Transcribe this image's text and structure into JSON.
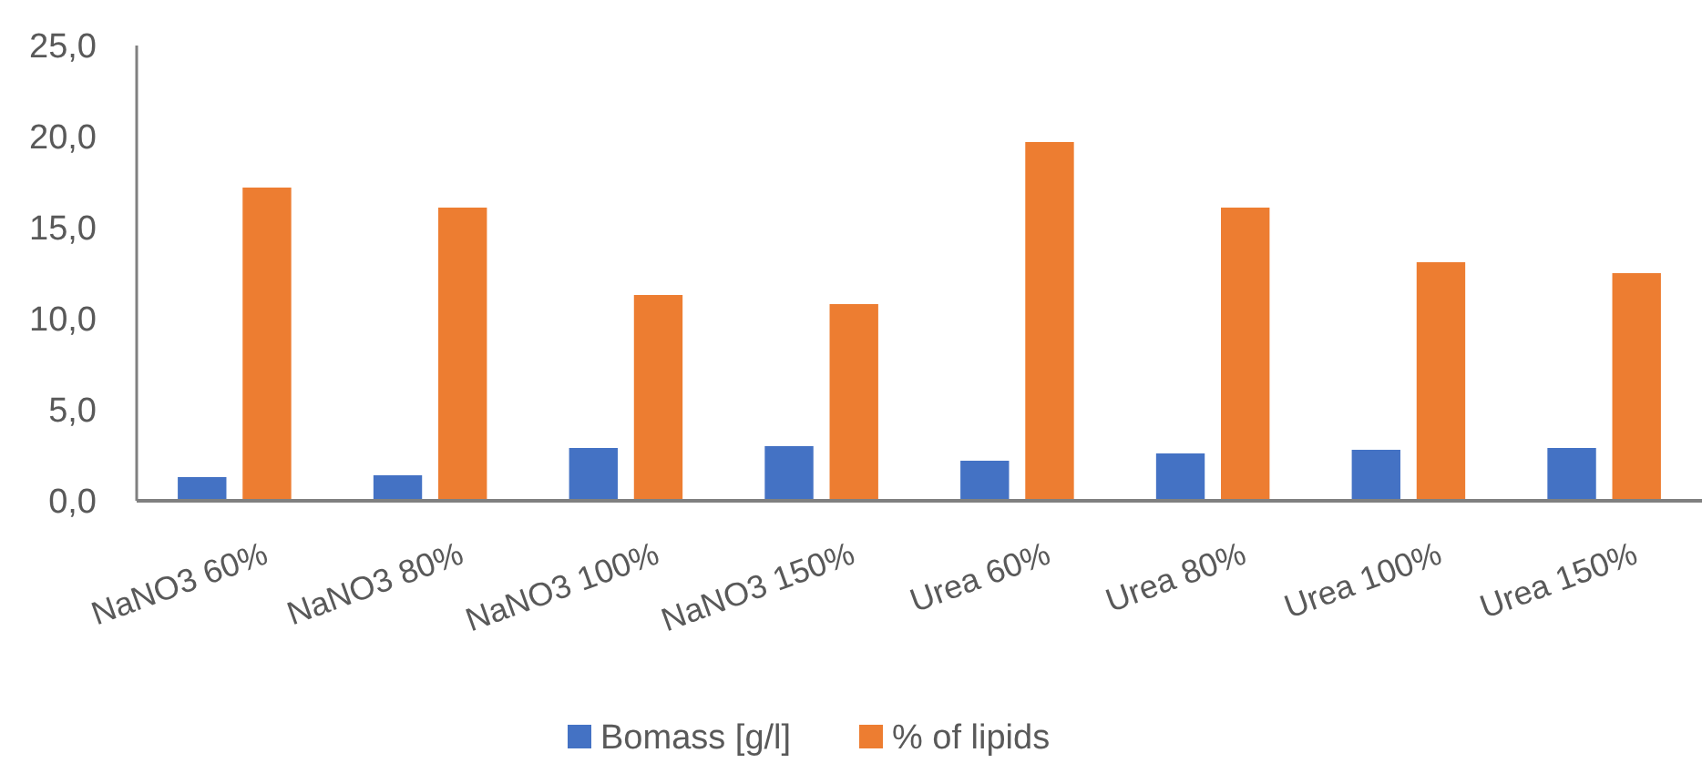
{
  "chart_data": {
    "type": "bar",
    "categories": [
      "NaNO3 60%",
      "NaNO3 80%",
      "NaNO3 100%",
      "NaNO3 150%",
      "Urea 60%",
      "Urea 80%",
      "Urea 100%",
      "Urea 150%"
    ],
    "series": [
      {
        "name": "Bomass [g/l]",
        "color": "#4472c4",
        "values": [
          1.3,
          1.4,
          2.9,
          3.0,
          2.2,
          2.6,
          2.8,
          2.9
        ]
      },
      {
        "name": "% of lipids",
        "color": "#ed7d31",
        "values": [
          17.2,
          16.1,
          11.3,
          10.8,
          19.7,
          16.1,
          13.1,
          12.5
        ]
      }
    ],
    "ylim": [
      0,
      25
    ],
    "yticks": [
      {
        "value": 0,
        "label": "0,0"
      },
      {
        "value": 5,
        "label": "5,0"
      },
      {
        "value": 10,
        "label": "10,0"
      },
      {
        "value": 15,
        "label": "15,0"
      },
      {
        "value": 20,
        "label": "20,0"
      },
      {
        "value": 25,
        "label": "25,0"
      }
    ],
    "grid": false,
    "legend": "bottom"
  }
}
